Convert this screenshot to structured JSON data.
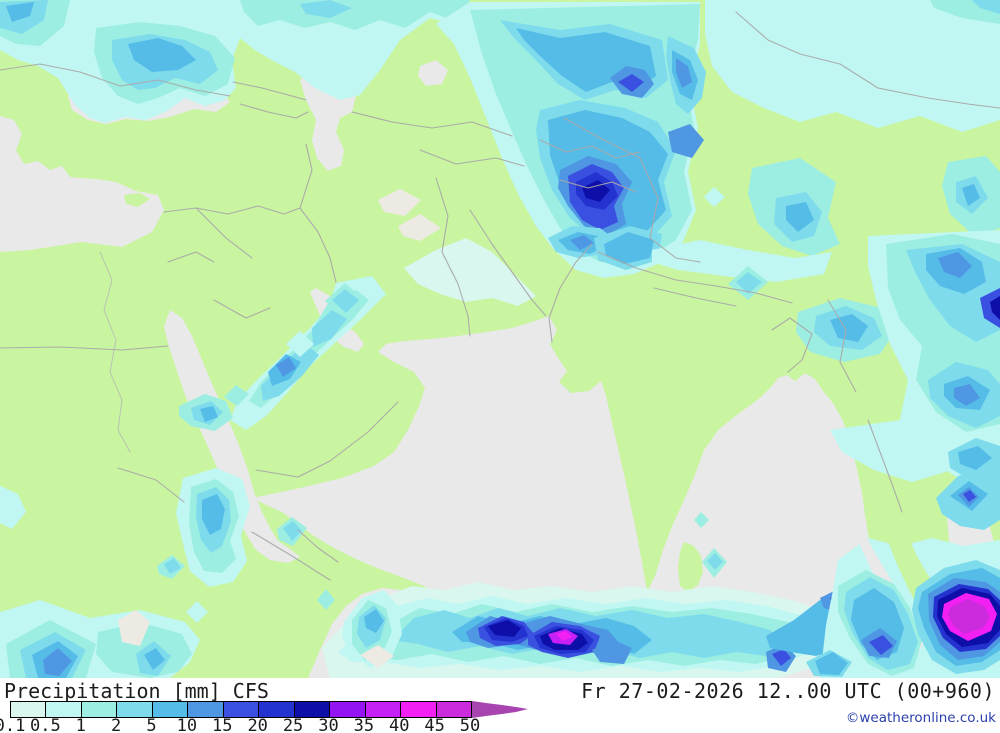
{
  "header": {
    "left": "Precipitation [mm] CFS",
    "right": "Fr 27-02-2026 12..00 UTC (00+960)"
  },
  "legend": {
    "labels": [
      "0.1",
      "0.5",
      "1",
      "2",
      "5",
      "10",
      "15",
      "20",
      "25",
      "30",
      "35",
      "40",
      "45",
      "50"
    ],
    "colors": [
      "#d9f7ef",
      "#c0f7f2",
      "#9deee2",
      "#7edbec",
      "#55bce8",
      "#4f97e3",
      "#3a50e0",
      "#2433cf",
      "#0e0ea8",
      "#9414f4",
      "#c520f6",
      "#f320f3",
      "#cb2add"
    ],
    "arrow_color": "#a844b0"
  },
  "map": {
    "land": "#c9f4a0",
    "sea": "#e9e9e9",
    "border": "#a9a9a9",
    "river": "#b4b4b4",
    "pale_patch": "#edeae4"
  },
  "credit": {
    "text": "©weatheronline.co.uk",
    "color": "#2b3fae"
  }
}
